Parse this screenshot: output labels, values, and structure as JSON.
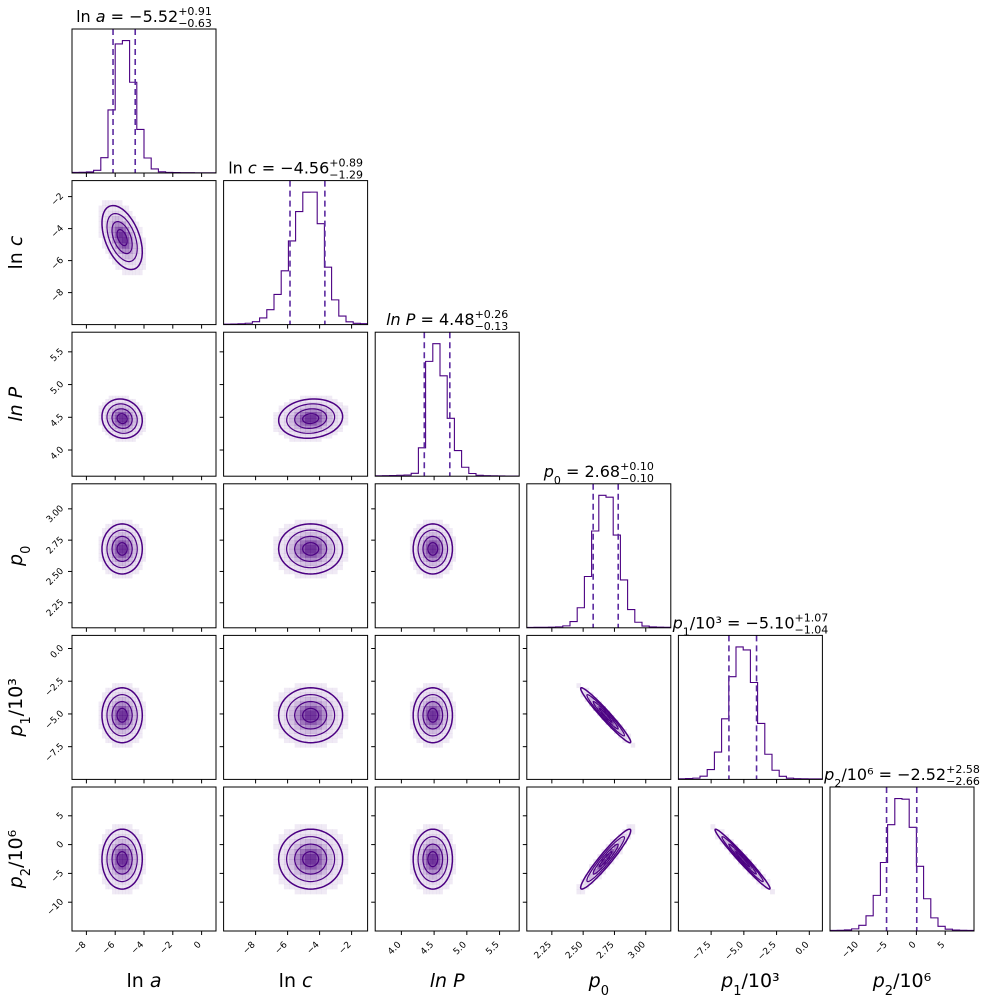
{
  "chart_data": {
    "type": "corner",
    "colors": {
      "main": "#4B0082",
      "quantile": "#5b2aa0",
      "frame": "#000000"
    },
    "params": [
      {
        "name": "ln a",
        "label_main": "ln ",
        "label_var": "a",
        "label_den": "",
        "title_main": "ln ",
        "title_var": "a",
        "title_sub": "",
        "title_den": "",
        "title_value": " = −5.52",
        "title_plus": "+0.91",
        "title_minus": "−0.63",
        "median": -5.52,
        "lo": -6.15,
        "hi": -4.61,
        "sigma": 0.7,
        "range": [
          -9,
          1
        ],
        "ticks": [
          -8,
          -6,
          -4,
          -2,
          0
        ],
        "tick_labels": [
          "−8",
          "−6",
          "−4",
          "−2",
          "0"
        ]
      },
      {
        "name": "ln c",
        "label_main": "ln ",
        "label_var": "c",
        "label_den": "",
        "title_main": "ln ",
        "title_var": "c",
        "title_sub": "",
        "title_den": "",
        "title_value": " = −4.56",
        "title_plus": "+0.89",
        "title_minus": "−1.29",
        "median": -4.56,
        "lo": -5.85,
        "hi": -3.67,
        "sigma": 1.0,
        "range": [
          -10,
          -1
        ],
        "ticks": [
          -8,
          -6,
          -4,
          -2
        ],
        "tick_labels": [
          "−8",
          "−6",
          "−4",
          "−2"
        ]
      },
      {
        "name": "ln P",
        "label_main": "",
        "label_var": "ln P",
        "label_den": "",
        "title_main": "",
        "title_var": "ln P",
        "title_sub": "",
        "title_den": "",
        "title_value": " = 4.48",
        "title_plus": "+0.26",
        "title_minus": "−0.13",
        "median": 4.48,
        "lo": 4.35,
        "hi": 4.74,
        "sigma": 0.15,
        "range": [
          3.6,
          5.8
        ],
        "ticks": [
          4.0,
          4.5,
          5.0,
          5.5
        ],
        "tick_labels": [
          "4.0",
          "4.5",
          "5.0",
          "5.5"
        ]
      },
      {
        "name": "p0",
        "label_main": "",
        "label_var": "p",
        "label_sub": "0",
        "label_den": "",
        "title_main": "",
        "title_var": "p",
        "title_sub": "0",
        "title_den": "",
        "title_value": " = 2.68",
        "title_plus": "+0.10",
        "title_minus": "−0.10",
        "median": 2.68,
        "lo": 2.58,
        "hi": 2.78,
        "sigma": 0.1,
        "range": [
          2.05,
          3.2
        ],
        "ticks": [
          2.25,
          2.5,
          2.75,
          3.0
        ],
        "tick_labels": [
          "2.25",
          "2.50",
          "2.75",
          "3.00"
        ]
      },
      {
        "name": "p1/10^3",
        "label_main": "",
        "label_var": "p",
        "label_sub": "1",
        "label_den": "/10³",
        "title_main": "",
        "title_var": "p",
        "title_sub": "1",
        "title_den": "/10³",
        "title_value": " = −5.10",
        "title_plus": "+1.07",
        "title_minus": "−1.04",
        "median": -5.1,
        "lo": -6.14,
        "hi": -4.03,
        "sigma": 1.05,
        "range": [
          -10,
          1
        ],
        "ticks": [
          -7.5,
          -5.0,
          -2.5,
          0.0
        ],
        "tick_labels": [
          "−7.5",
          "−5.0",
          "−2.5",
          "0.0"
        ]
      },
      {
        "name": "p2/10^6",
        "label_main": "",
        "label_var": "p",
        "label_sub": "2",
        "label_den": "/10⁶",
        "title_main": "",
        "title_var": "p",
        "title_sub": "2",
        "title_den": "/10⁶",
        "title_value": " = −2.52",
        "title_plus": "+2.58",
        "title_minus": "−2.66",
        "median": -2.52,
        "lo": -5.18,
        "hi": 0.06,
        "sigma": 2.6,
        "range": [
          -15,
          10
        ],
        "ticks": [
          -10,
          -5,
          0,
          5
        ],
        "tick_labels": [
          "−10",
          "−5",
          "0",
          "5"
        ]
      }
    ],
    "correlations": [
      [
        1.0,
        -0.45,
        -0.1,
        0.0,
        0.0,
        0.0
      ],
      [
        -0.45,
        1.0,
        0.1,
        0.0,
        0.0,
        0.0
      ],
      [
        -0.1,
        0.1,
        1.0,
        0.0,
        0.0,
        0.0
      ],
      [
        0.0,
        0.0,
        0.0,
        1.0,
        -0.97,
        0.95
      ],
      [
        0.0,
        0.0,
        0.0,
        -0.97,
        1.0,
        -0.98
      ],
      [
        0.0,
        0.0,
        0.0,
        0.95,
        -0.98,
        1.0
      ]
    ]
  }
}
